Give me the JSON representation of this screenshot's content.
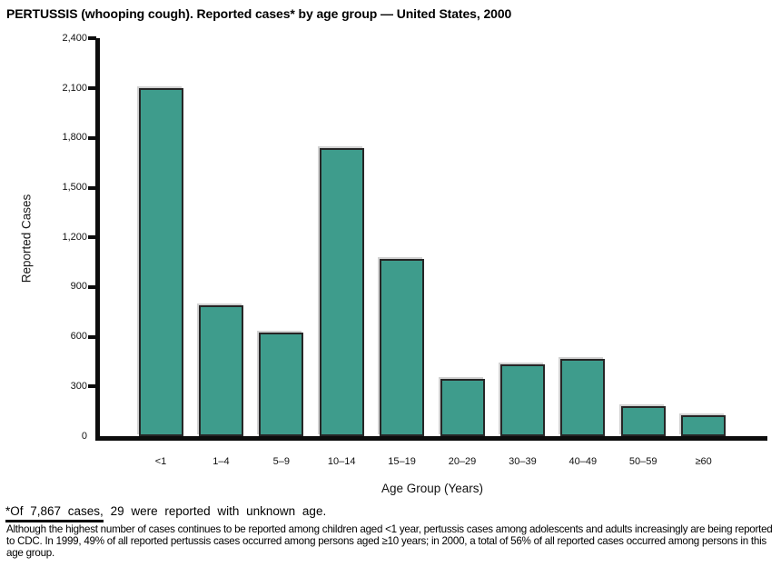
{
  "title": "PERTUSSIS (whooping cough). Reported cases* by age group — United States, 2000",
  "chart_data": {
    "type": "bar",
    "title": "PERTUSSIS (whooping cough). Reported cases* by age group — United States, 2000",
    "categories": [
      "<1",
      "1–4",
      "5–9",
      "10–14",
      "15–19",
      "20–29",
      "30–39",
      "40–49",
      "50–59",
      "≥60"
    ],
    "values": [
      2100,
      790,
      625,
      1740,
      1070,
      345,
      435,
      465,
      180,
      125
    ],
    "xlabel": "Age Group (Years)",
    "ylabel": "Reported Cases",
    "ylim": [
      0,
      2400
    ],
    "ytick_interval": 300,
    "ytick_labels": [
      "0",
      "300",
      "600",
      "900",
      "1,200",
      "1,500",
      "1,800",
      "2,100",
      "2,400"
    ],
    "grid": false,
    "legend_position": "none",
    "bar_color": "#3E9C8C",
    "bar_border_color": "#262626",
    "axis_color": "#0d0d0d"
  },
  "footnotes": {
    "note1_underlined": "*Of 7,867 cases,",
    "note1_rest": " 29 were reported with unknown age.",
    "note2": "Although the highest number of cases continues to be reported among children aged <1 year, pertussis cases among adolescents and adults increasingly are being reported to CDC. In 1999, 49% of all reported pertussis cases occurred among persons aged ≥10 years; in 2000, a total of 56% of all reported cases occurred among persons in this age group."
  }
}
